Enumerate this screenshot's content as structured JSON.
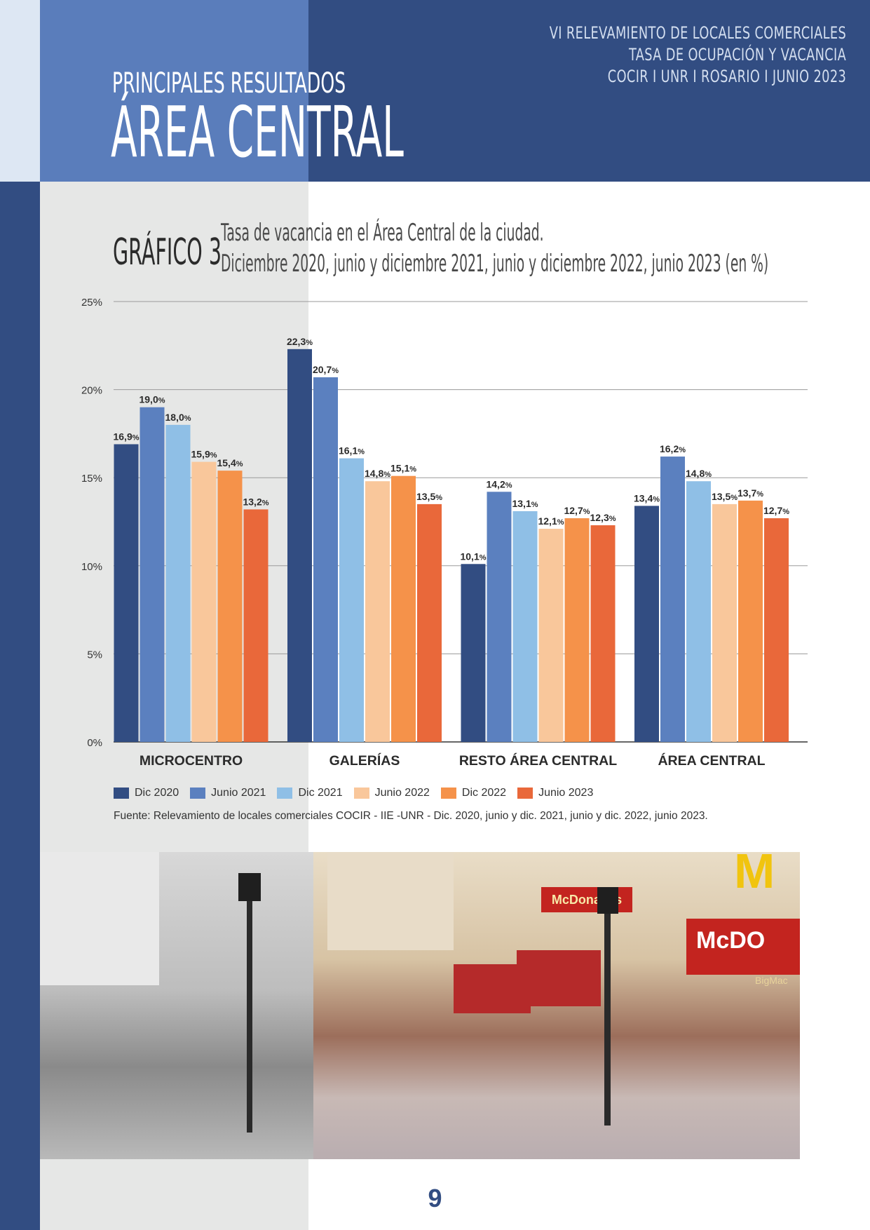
{
  "header": {
    "lines": [
      "VI RELEVAMIENTO DE LOCALES COMERCIALES",
      "TASA DE OCUPACIÓN Y VACANCIA",
      "COCIR I UNR I ROSARIO I JUNIO 2023"
    ],
    "section": "PRINCIPALES RESULTADOS",
    "title": "ÁREA CENTRAL"
  },
  "figure": {
    "label": "GRÁFICO 3",
    "title_line1": "Tasa de vacancia en el Área Central de la ciudad.",
    "title_line2": "Diciembre 2020, junio y diciembre 2021, junio y diciembre 2022, junio 2023 (en %)"
  },
  "chart_data": {
    "type": "bar",
    "categories": [
      "MICROCENTRO",
      "GALERÍAS",
      "RESTO ÁREA CENTRAL",
      "ÁREA CENTRAL"
    ],
    "series": [
      {
        "name": "Dic 2020",
        "color": "#324d82",
        "values": [
          16.9,
          22.3,
          10.1,
          13.4
        ],
        "labels": [
          "16,9",
          "22,3",
          "10,1",
          "13,4"
        ]
      },
      {
        "name": "Junio 2021",
        "color": "#5b80bf",
        "values": [
          19.0,
          20.7,
          14.2,
          16.2
        ],
        "labels": [
          "19,0",
          "20,7",
          "14,2",
          "16,2"
        ]
      },
      {
        "name": "Dic 2021",
        "color": "#8fbfe6",
        "values": [
          18.0,
          16.1,
          13.1,
          14.8
        ],
        "labels": [
          "18,0",
          "16,1",
          "13,1",
          "14,8"
        ]
      },
      {
        "name": "Junio 2022",
        "color": "#f9c79b",
        "values": [
          15.9,
          14.8,
          12.1,
          13.5
        ],
        "labels": [
          "15,9",
          "14,8",
          "12,1",
          "13,5"
        ]
      },
      {
        "name": "Dic 2022",
        "color": "#f5924a",
        "values": [
          15.4,
          15.1,
          12.7,
          13.7
        ],
        "labels": [
          "15,4",
          "15,1",
          "12,7",
          "13,7"
        ]
      },
      {
        "name": "Junio 2023",
        "color": "#e9683a",
        "values": [
          13.2,
          13.5,
          12.3,
          12.7
        ],
        "labels": [
          "13,2",
          "13,5",
          "12,3",
          "12,7"
        ]
      }
    ],
    "ylim": [
      0,
      25
    ],
    "yticks": [
      "0%",
      "5%",
      "10%",
      "15%",
      "20%",
      "25%"
    ],
    "ytick_values": [
      0,
      5,
      10,
      15,
      20,
      25
    ],
    "label_suffix": "%",
    "grid": true,
    "legend_position": "bottom"
  },
  "source": "Fuente: Relevamiento de locales comerciales COCIR - IIE -UNR - Dic. 2020, junio y dic. 2021, junio y dic. 2022, junio 2023.",
  "photo": {
    "sign_text": "McDonald's",
    "sign_text_2": "McDO",
    "sign_text_3": "BigMac"
  },
  "page_number": "9"
}
